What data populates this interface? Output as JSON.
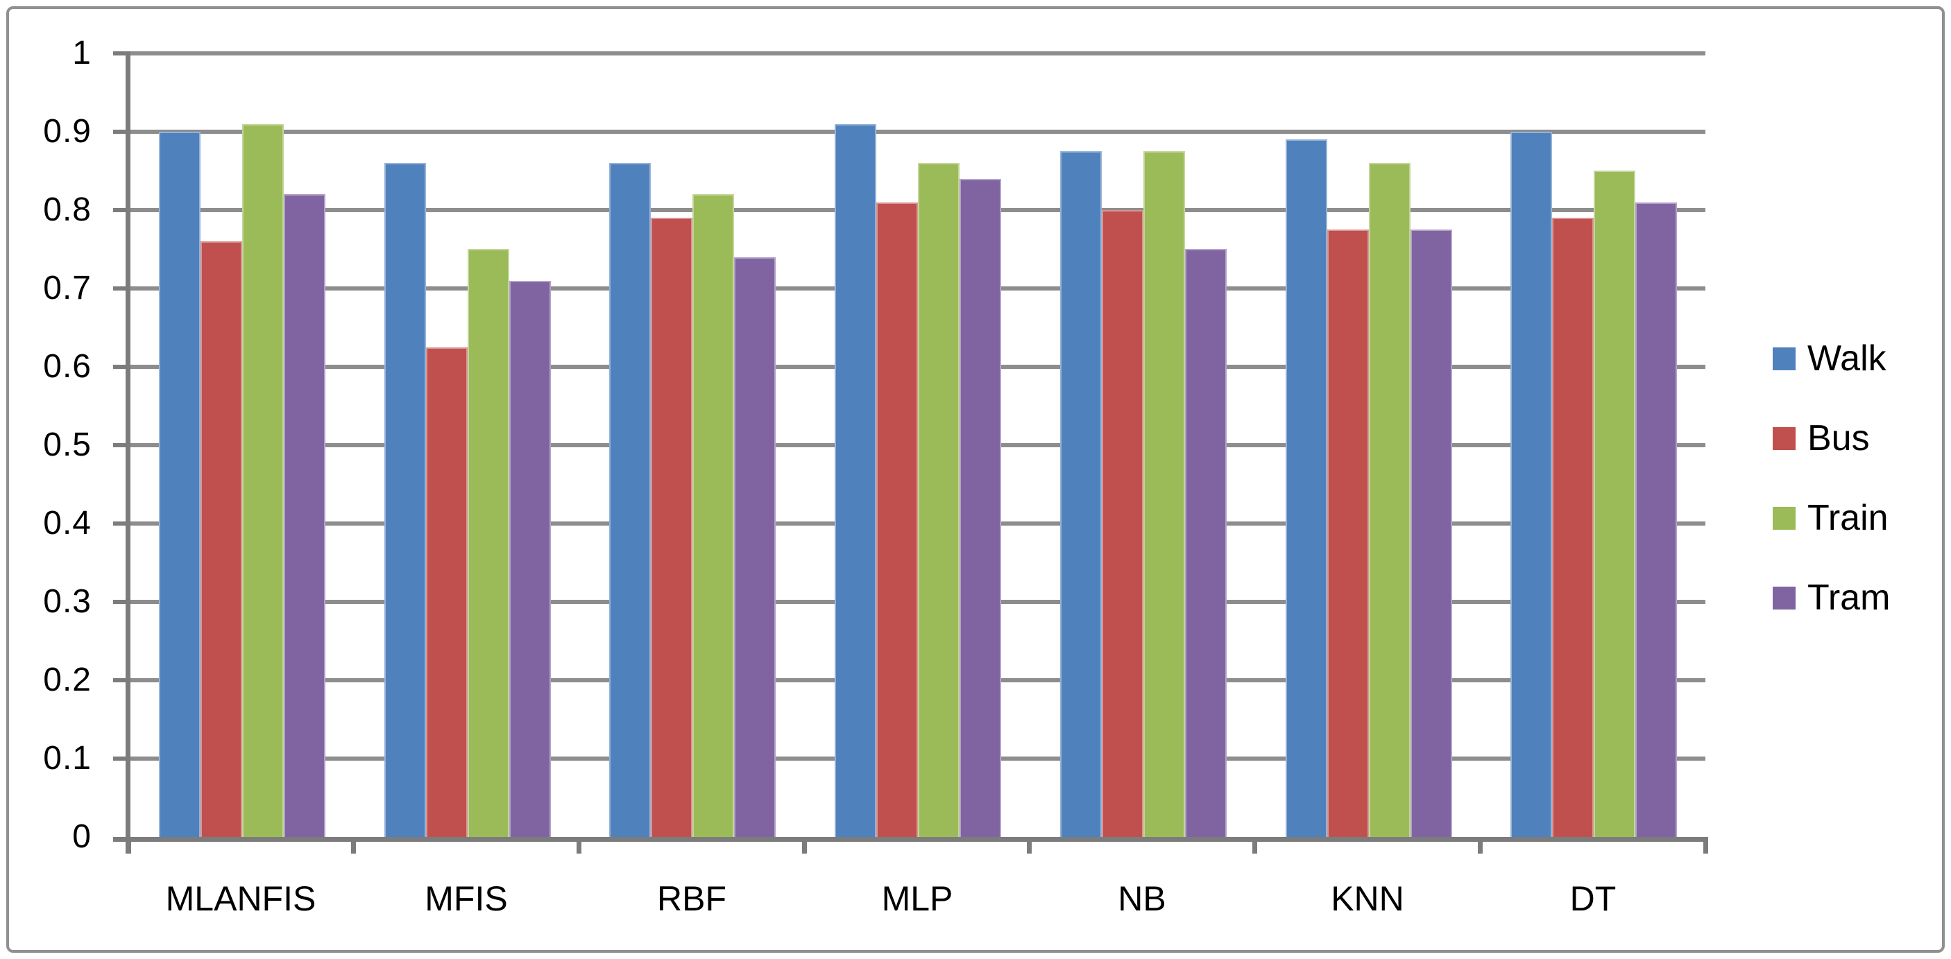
{
  "chart_data": {
    "type": "bar",
    "categories": [
      "MLANFIS",
      "MFIS",
      "RBF",
      "MLP",
      "NB",
      "KNN",
      "DT"
    ],
    "series": [
      {
        "name": "Walk",
        "color": "#4F81BD",
        "values": [
          0.9,
          0.86,
          0.86,
          0.91,
          0.875,
          0.89,
          0.9
        ]
      },
      {
        "name": "Bus",
        "color": "#C0504D",
        "values": [
          0.76,
          0.625,
          0.79,
          0.81,
          0.8,
          0.775,
          0.79
        ]
      },
      {
        "name": "Train",
        "color": "#9BBB59",
        "values": [
          0.91,
          0.75,
          0.82,
          0.86,
          0.875,
          0.86,
          0.85
        ]
      },
      {
        "name": "Tram",
        "color": "#8064A2",
        "values": [
          0.82,
          0.71,
          0.74,
          0.84,
          0.75,
          0.775,
          0.81
        ]
      }
    ],
    "title": "",
    "xlabel": "",
    "ylabel": "",
    "ylim": [
      0,
      1
    ],
    "ytick_interval": 0.1,
    "yticks": [
      "0",
      "0.1",
      "0.2",
      "0.3",
      "0.4",
      "0.5",
      "0.6",
      "0.7",
      "0.8",
      "0.9",
      "1"
    ],
    "grid": "horizontal",
    "legend_position": "right"
  },
  "style": {
    "background": "#FFFFFF",
    "border_color": "#909090",
    "grid_color": "#8D8D8D",
    "axis_color": "#7C7C7C",
    "text_color": "#000000"
  }
}
